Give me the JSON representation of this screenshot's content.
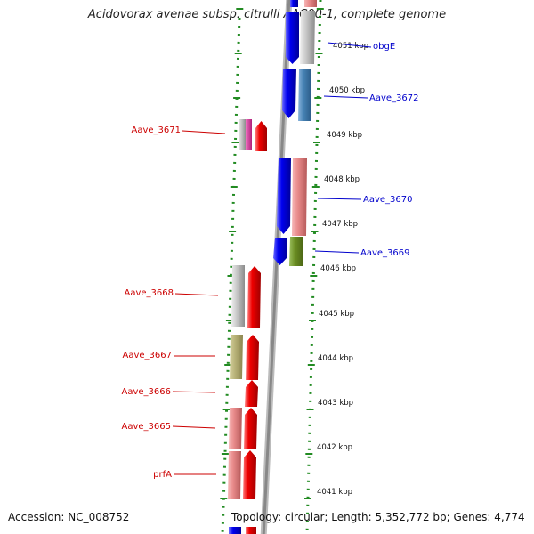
{
  "title": "Acidovorax avenae subsp. citrulli AAC00-1, complete genome",
  "footer": {
    "accession": "Accession: NC_008752",
    "topology": "Topology: circular; Length: 5,352,772 bp; Genes: 4,774"
  },
  "ruler_labels": [
    "4051 kbp",
    "4050 kbp",
    "4049 kbp",
    "4048 kbp",
    "4047 kbp",
    "4046 kbp",
    "4045 kbp",
    "4044 kbp",
    "4043 kbp",
    "4042 kbp",
    "4041 kbp"
  ],
  "forward_genes": [
    "obgE",
    "Aave_3672",
    "Aave_3670",
    "Aave_3669"
  ],
  "reverse_genes": [
    "Aave_3671",
    "Aave_3668",
    "Aave_3667",
    "Aave_3666",
    "Aave_3665",
    "prfA"
  ],
  "colors": {
    "forward_label": "#0000cc",
    "reverse_label": "#cc0000",
    "forward_gene": "#0000ee",
    "reverse_gene": "#ee0000",
    "backbone": "#888888",
    "dots": "#228B22"
  }
}
